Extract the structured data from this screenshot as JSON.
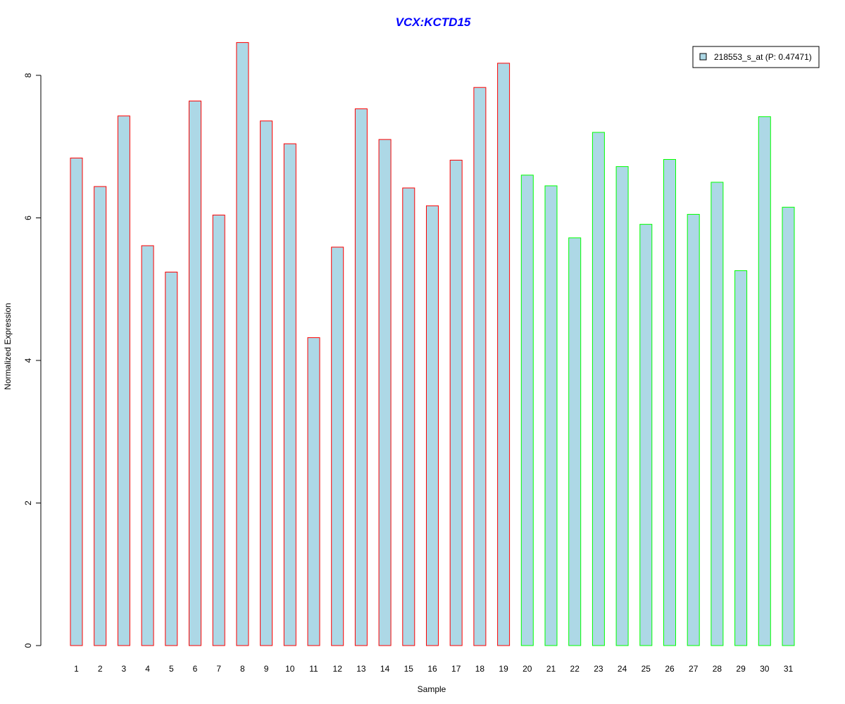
{
  "chart_data": {
    "type": "bar",
    "title": "VCX:KCTD15",
    "xlabel": "Sample",
    "ylabel": "Normalized Expression",
    "categories": [
      "1",
      "2",
      "3",
      "4",
      "5",
      "6",
      "7",
      "8",
      "9",
      "10",
      "11",
      "12",
      "13",
      "14",
      "15",
      "16",
      "17",
      "18",
      "19",
      "20",
      "21",
      "22",
      "23",
      "24",
      "25",
      "26",
      "27",
      "28",
      "29",
      "30",
      "31"
    ],
    "series": [
      {
        "name": "218553_s_at (P: 0.47471)",
        "values": [
          6.84,
          6.44,
          7.43,
          5.61,
          5.24,
          7.64,
          6.04,
          8.46,
          7.36,
          7.04,
          4.32,
          5.59,
          7.53,
          7.1,
          6.42,
          6.17,
          6.81,
          7.83,
          8.17,
          6.6,
          6.45,
          5.72,
          7.2,
          6.72,
          5.91,
          6.82,
          6.05,
          6.5,
          5.26,
          7.42,
          6.15
        ]
      }
    ],
    "groups": [
      {
        "from": 1,
        "to": 19,
        "border_color": "#ff0000"
      },
      {
        "from": 20,
        "to": 31,
        "border_color": "#00ff00"
      }
    ],
    "y_ticks": [
      "0",
      "2",
      "4",
      "6",
      "8"
    ],
    "ylim": [
      0,
      8.5
    ],
    "bar_fill": "#add8e6",
    "title_color": "#0000ff",
    "legend_placement": "top-right",
    "grid": false
  }
}
